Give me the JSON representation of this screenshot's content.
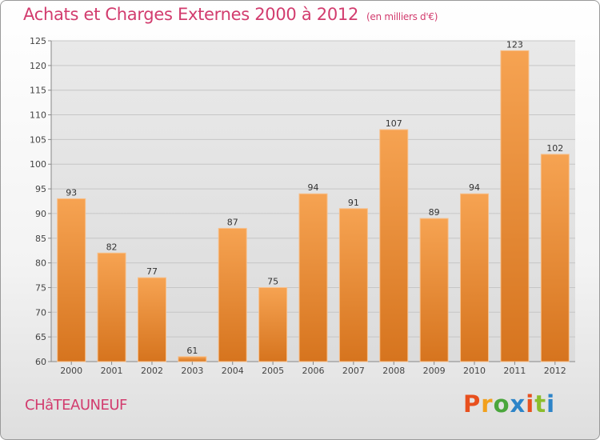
{
  "header": {
    "title": "Achats et Charges Externes 2000 à 2012",
    "unit": "(en milliers d'€)"
  },
  "footer": {
    "commune": "CHâTEAUNEUF",
    "logo_letters": [
      "P",
      "r",
      "o",
      "x",
      "i",
      "t",
      "i"
    ],
    "logo_colors": [
      "#e8501e",
      "#f2a01c",
      "#4aa63c",
      "#2d84c8",
      "#e8501e",
      "#8bbd2c",
      "#2d84c8"
    ]
  },
  "chart_data": {
    "type": "bar",
    "title": "Achats et Charges Externes 2000 à 2012",
    "subtitle": "(en milliers d'€)",
    "categories": [
      "2000",
      "2001",
      "2002",
      "2003",
      "2004",
      "2005",
      "2006",
      "2007",
      "2008",
      "2009",
      "2010",
      "2011",
      "2012"
    ],
    "values": [
      93,
      82,
      77,
      61,
      87,
      75,
      94,
      91,
      107,
      89,
      94,
      123,
      102
    ],
    "ylim": [
      60,
      125
    ],
    "yticks": [
      60,
      65,
      70,
      75,
      80,
      85,
      90,
      95,
      100,
      105,
      110,
      115,
      120,
      125
    ],
    "grid": true,
    "legend": "none",
    "bar_color": "#f0913a",
    "xlabel": "",
    "ylabel": ""
  }
}
